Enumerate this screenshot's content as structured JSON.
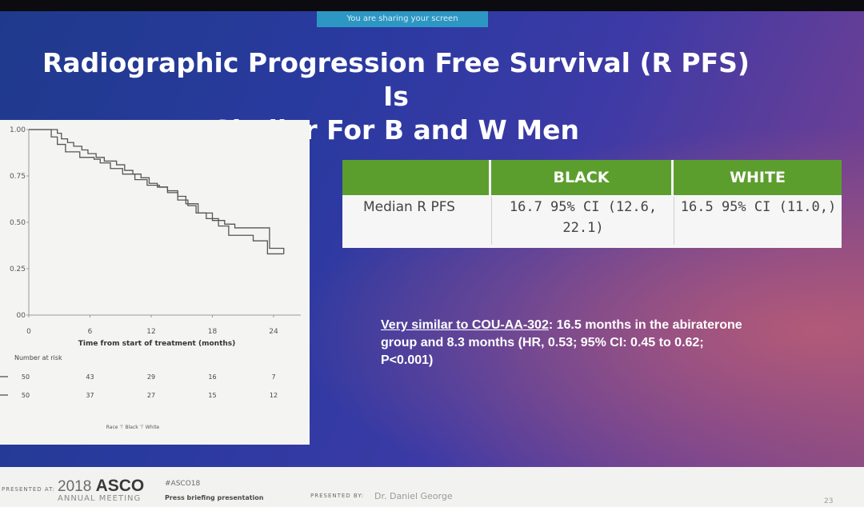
{
  "banner": "You are sharing your screen",
  "title_line1": "Radiographic Progression Free Survival (R PFS) Is",
  "title_line2": "Similar For B and W Men",
  "chart_data": {
    "type": "line",
    "title": "",
    "xlabel": "Time from start of treatment (months)",
    "ylabel": "",
    "x_ticks": [
      "0",
      "6",
      "12",
      "18",
      "24"
    ],
    "y_ticks": [
      "1.00",
      "0.75",
      "0.50",
      "0.25",
      "00"
    ],
    "xlim": [
      0,
      24
    ],
    "ylim": [
      0,
      1
    ],
    "series": [
      {
        "x": [
          0,
          2.8,
          3.2,
          3.8,
          4.4,
          5.2,
          5.8,
          6.6,
          7.4,
          8.6,
          9.4,
          10.2,
          11.0,
          11.8,
          12.6,
          13.6,
          14.6,
          15.4,
          16.6,
          18.0,
          19.2,
          20.2,
          22.6,
          23.6,
          25.0
        ],
        "y": [
          1.0,
          0.98,
          0.95,
          0.93,
          0.91,
          0.89,
          0.87,
          0.85,
          0.83,
          0.81,
          0.78,
          0.76,
          0.74,
          0.71,
          0.69,
          0.67,
          0.64,
          0.6,
          0.55,
          0.51,
          0.49,
          0.47,
          0.47,
          0.36,
          0.33
        ]
      },
      {
        "x": [
          0,
          2.2,
          2.8,
          3.6,
          5.0,
          6.4,
          7.0,
          8.0,
          9.2,
          10.4,
          11.6,
          12.8,
          13.6,
          14.6,
          15.6,
          16.4,
          17.4,
          18.6,
          19.6,
          22.0,
          23.4,
          25.0
        ],
        "y": [
          1.0,
          0.96,
          0.92,
          0.88,
          0.85,
          0.84,
          0.82,
          0.79,
          0.76,
          0.73,
          0.7,
          0.69,
          0.66,
          0.62,
          0.59,
          0.55,
          0.52,
          0.48,
          0.43,
          0.4,
          0.33,
          0.33
        ]
      }
    ],
    "risk_table": {
      "label": "Number at risk",
      "rows": [
        [
          "50",
          "43",
          "29",
          "16",
          "7"
        ],
        [
          "50",
          "37",
          "27",
          "15",
          "12"
        ]
      ]
    },
    "legend": "Race  ⊤ Black ⊤ White"
  },
  "table": {
    "headers": [
      "BLACK",
      "WHITE"
    ],
    "row_label": "Median R PFS",
    "black_line1": "16.7 95% CI (12.6,",
    "black_line2": "22.1)",
    "white_value": "16.5 95% CI (11.0,)"
  },
  "note": {
    "lead": "Very similar to COU-AA-302",
    "rest_line1": ":  16.5 months in the abiraterone",
    "line2": "group and 8.3 months (HR, 0.53; 95% CI: 0.45 to 0.62;",
    "line3": "P<0.001)"
  },
  "footer": {
    "presented_at": "PRESENTED AT:",
    "year": "2018",
    "asco": "ASCO",
    "meeting": "ANNUAL MEETING",
    "hashtag": "#ASCO18",
    "press": "Press briefing presentation",
    "presented_by": "PRESENTED BY:",
    "presenter": "Dr. Daniel George",
    "page": "23"
  }
}
